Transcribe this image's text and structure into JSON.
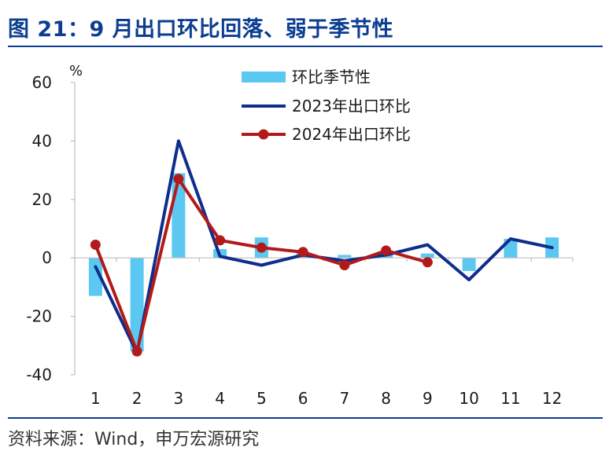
{
  "title": "图 21：9 月出口环比回落、弱于季节性",
  "source": "资料来源：Wind，申万宏源研究",
  "chart_data": {
    "type": "bar",
    "unit_label": "%",
    "categories": [
      "1",
      "2",
      "3",
      "4",
      "5",
      "6",
      "7",
      "8",
      "9",
      "10",
      "11",
      "12"
    ],
    "ylim": [
      -40,
      60
    ],
    "yticks": [
      "60",
      "40",
      "20",
      "0",
      "-20",
      "-40"
    ],
    "grid": false,
    "legend_position": "top-right",
    "series": [
      {
        "name": "环比季节性",
        "type": "bar",
        "color": "#5bc8f2",
        "values": [
          -13,
          -32,
          29,
          3,
          7,
          2,
          1,
          2,
          1.5,
          -4.5,
          6.5,
          7
        ]
      },
      {
        "name": "2023年出口环比",
        "type": "line",
        "color": "#0f2d8c",
        "values": [
          -3,
          -32.5,
          40,
          0.5,
          -2.5,
          1,
          -1,
          1,
          4.5,
          -7.5,
          6.5,
          3.5
        ]
      },
      {
        "name": "2024年出口环比",
        "type": "line",
        "color": "#b21a1a",
        "marker": "circle",
        "values": [
          4.5,
          -32,
          27,
          6,
          3.5,
          2,
          -2.5,
          2.5,
          -1.5,
          null,
          null,
          null
        ]
      }
    ]
  }
}
